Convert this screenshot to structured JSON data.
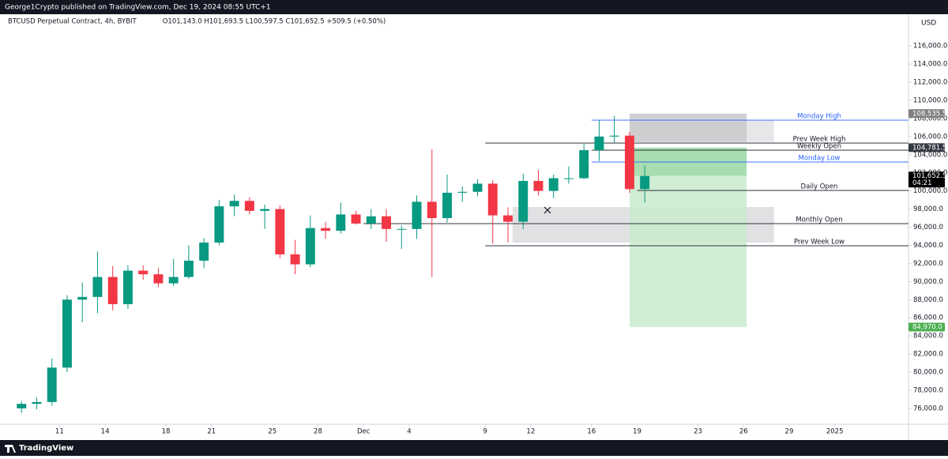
{
  "header": {
    "published": "George1Crypto published on TradingView.com, Dec 19, 2024 08:55 UTC+1",
    "brand": "TradingView"
  },
  "chart_data": {
    "type": "candlestick",
    "symbol": "BTCUSD Perpetual Contract, 4h, BYBIT",
    "ohlc_text": "O101,143.0  H101,693.5  L100,597.5  C101,652.5  +509.5 (+0.50%)",
    "currency": "USD",
    "x": [
      8,
      9,
      10,
      11,
      12,
      13,
      14,
      15,
      16,
      17,
      18,
      19,
      20,
      21,
      22,
      23,
      24,
      25,
      26,
      27,
      28,
      29,
      30,
      31,
      32,
      33,
      34,
      35,
      36,
      37,
      38,
      39,
      40,
      41,
      42,
      43,
      44,
      45,
      46,
      47,
      48,
      49
    ],
    "open": [
      76000,
      76500,
      76700,
      80500,
      88000,
      88300,
      90500,
      87500,
      91200,
      90800,
      89800,
      90500,
      92300,
      94300,
      98300,
      98900,
      97800,
      98000,
      93000,
      91900,
      95900,
      95600,
      97400,
      96400,
      97200,
      95800,
      95800,
      98800,
      97000,
      99800,
      99900,
      100800,
      97300,
      96600,
      101100,
      100000,
      101400,
      101400,
      104500,
      106000,
      106100,
      100200
    ],
    "high": [
      76800,
      77200,
      81500,
      88500,
      89900,
      93300,
      91700,
      91800,
      91800,
      91500,
      92500,
      94000,
      94800,
      99000,
      99600,
      99300,
      98500,
      98400,
      94600,
      97300,
      96600,
      98700,
      97800,
      98000,
      98000,
      96200,
      99500,
      104600,
      101800,
      100500,
      101300,
      101200,
      98200,
      101900,
      102300,
      101800,
      102700,
      105200,
      107800,
      108300,
      106500,
      102800
    ],
    "low": [
      75500,
      75900,
      76300,
      80000,
      85500,
      86500,
      86800,
      87000,
      90200,
      89400,
      89500,
      90300,
      91500,
      94000,
      97200,
      97400,
      95800,
      92600,
      90800,
      91600,
      94700,
      95300,
      96300,
      95800,
      94400,
      93600,
      94700,
      90500,
      96500,
      98800,
      99400,
      94200,
      94300,
      95800,
      99500,
      99200,
      100800,
      101300,
      103300,
      105300,
      99800,
      98700
    ],
    "close": [
      76500,
      76700,
      80500,
      88000,
      88300,
      90500,
      87500,
      91200,
      90800,
      89800,
      90500,
      92300,
      94300,
      98300,
      98900,
      97800,
      98000,
      93000,
      91900,
      95900,
      95600,
      97400,
      96400,
      97200,
      95800,
      95800,
      98800,
      97000,
      99800,
      99900,
      100800,
      97300,
      96600,
      101100,
      100000,
      101400,
      101400,
      104500,
      106000,
      106100,
      100200,
      101652.5
    ],
    "up_color": "#089981",
    "down_color": "#f23645",
    "xlim": [
      7.5,
      66.85
    ],
    "xticks": [
      11,
      14,
      18,
      21,
      25,
      28,
      {
        "value": 31,
        "label": "Dec"
      },
      {
        "value": 34,
        "label": "4"
      },
      {
        "value": 39,
        "label": "9"
      },
      {
        "value": 42,
        "label": "12"
      },
      {
        "value": 46,
        "label": "16"
      },
      {
        "value": 49,
        "label": "19"
      },
      {
        "value": 53,
        "label": "23"
      },
      {
        "value": 56,
        "label": "26"
      },
      {
        "value": 59,
        "label": "29"
      },
      {
        "value": 62,
        "label": "2025"
      }
    ],
    "ylim": [
      74250,
      119500
    ],
    "yticks": [
      {
        "value": 76000,
        "label": "76,000.0"
      },
      {
        "value": 78000,
        "label": "78,000.0"
      },
      {
        "value": 80000,
        "label": "80,000.0"
      },
      {
        "value": 82000,
        "label": "82,000.0"
      },
      {
        "value": 84000,
        "label": "84,000.0"
      },
      {
        "value": 86000,
        "label": "86,000.0"
      },
      {
        "value": 88000,
        "label": "88,000.0"
      },
      {
        "value": 90000,
        "label": "90,000.0"
      },
      {
        "value": 92000,
        "label": "92,000.0"
      },
      {
        "value": 94000,
        "label": "94,000.0"
      },
      {
        "value": 96000,
        "label": "96,000.0"
      },
      {
        "value": 98000,
        "label": "98,000.0"
      },
      {
        "value": 100000,
        "label": "100,000.0"
      },
      {
        "value": 102000,
        "label": "102,000.0"
      },
      {
        "value": 104000,
        "label": "104,000.0"
      },
      {
        "value": 106000,
        "label": "106,000.0"
      },
      {
        "value": 108000,
        "label": "108,000.0"
      },
      {
        "value": 110000,
        "label": "110,000.0"
      },
      {
        "value": 112000,
        "label": "112,000.0"
      },
      {
        "value": 114000,
        "label": "114,000.0"
      },
      {
        "value": 116000,
        "label": "116,000.0"
      }
    ],
    "grid": false,
    "zones": [
      {
        "from": 48.5,
        "to": 58,
        "top": 107800,
        "bottom": 105400,
        "color": "#e3e3e6"
      },
      {
        "from": 48.5,
        "to": 56.2,
        "top": 108535.5,
        "bottom": 105400,
        "color": "#c9c9cd"
      },
      {
        "from": 40.8,
        "to": 58,
        "top": 98222,
        "bottom": 94300,
        "color": "#dcdcdf"
      },
      {
        "from": 48.5,
        "to": 56.2,
        "top": 104781.5,
        "bottom": 101652.5,
        "color": "#98d7a3"
      },
      {
        "from": 48.5,
        "to": 56.2,
        "top": 101652.5,
        "bottom": 84970,
        "color": "#c9ebcc"
      }
    ],
    "levels": [
      {
        "name": "Monday High",
        "value": 107808,
        "from": 46,
        "color": "#2962ff"
      },
      {
        "name": "Prev Week High",
        "value": 105281,
        "from": 39,
        "color": "#131722"
      },
      {
        "name": "Weekly Open",
        "value": 104497,
        "from": 46,
        "color": "#131722"
      },
      {
        "name": "Monday Low",
        "value": 103190,
        "from": 46,
        "color": "#2962ff"
      },
      {
        "name": "Daily Open",
        "value": 100052,
        "from": 49,
        "color": "#131722"
      },
      {
        "name": "Monthly Open",
        "value": 96392,
        "from": 31,
        "color": "#131722"
      },
      {
        "name": "Prev Week Low",
        "value": 93952,
        "from": 39,
        "color": "#131722"
      }
    ],
    "price_labels": [
      {
        "value": 108535.5,
        "label": "108,535.5",
        "color": "#808080"
      },
      {
        "value": 104781.5,
        "label": "104,781.5",
        "color": "#363a45"
      },
      {
        "value": 101652.5,
        "label": "101,652.5",
        "color": "#000000",
        "countdown": "04:21"
      },
      {
        "value": 84970,
        "label": "84,970.0",
        "color": "#4caf50"
      }
    ]
  }
}
